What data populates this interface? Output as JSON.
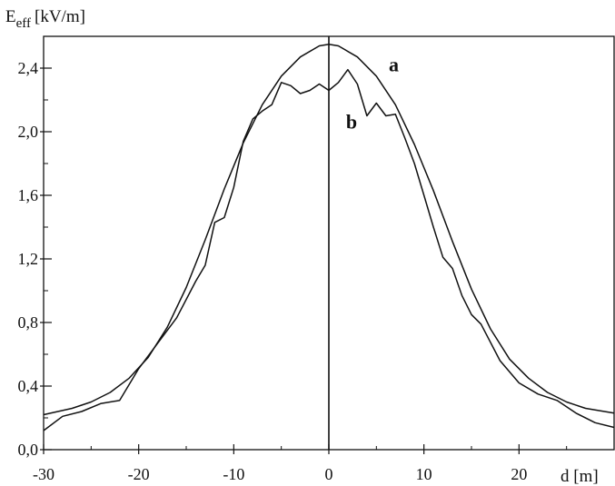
{
  "chart_data": {
    "type": "line",
    "title": "",
    "xlabel": "d [m]",
    "ylabel": {
      "main": "E",
      "subscript": "eff",
      "unit": "[kV/m]"
    },
    "xlim": [
      -30,
      30
    ],
    "ylim": [
      0,
      2.6
    ],
    "x_ticks": [
      -30,
      -20,
      -10,
      0,
      10,
      20
    ],
    "x_tick_labels": [
      "-30",
      "-20",
      "-10",
      "0",
      "10",
      "20"
    ],
    "y_ticks": [
      0,
      0.4,
      0.8,
      1.2,
      1.6,
      2.0,
      2.4
    ],
    "y_tick_labels": [
      "0,0",
      "0,4",
      "0,8",
      "1,2",
      "1,6",
      "2,0",
      "2,4"
    ],
    "grid": false,
    "legend": "none",
    "series": [
      {
        "name": "a",
        "x": [
          -30,
          -27,
          -25,
          -23,
          -21,
          -19,
          -17,
          -15,
          -13,
          -11,
          -9,
          -7,
          -5,
          -3,
          -1,
          0,
          1,
          3,
          5,
          7,
          9,
          11,
          13,
          15,
          17,
          19,
          21,
          23,
          25,
          27,
          30
        ],
        "values": [
          0.22,
          0.26,
          0.3,
          0.36,
          0.45,
          0.58,
          0.77,
          1.02,
          1.32,
          1.64,
          1.93,
          2.17,
          2.35,
          2.47,
          2.54,
          2.55,
          2.54,
          2.47,
          2.35,
          2.17,
          1.92,
          1.63,
          1.31,
          1.01,
          0.76,
          0.57,
          0.45,
          0.36,
          0.3,
          0.26,
          0.23
        ]
      },
      {
        "name": "b",
        "x": [
          -30,
          -28,
          -26,
          -24,
          -22,
          -20,
          -18,
          -16,
          -14,
          -13,
          -12,
          -11,
          -10,
          -9,
          -8,
          -7,
          -6,
          -5,
          -4,
          -3,
          -2,
          -1,
          0,
          1,
          2,
          3,
          4,
          5,
          6,
          7,
          8,
          9,
          10,
          11,
          12,
          13,
          14,
          15,
          16,
          18,
          20,
          22,
          24,
          26,
          28,
          30
        ],
        "values": [
          0.12,
          0.21,
          0.24,
          0.29,
          0.31,
          0.51,
          0.67,
          0.83,
          1.06,
          1.16,
          1.43,
          1.46,
          1.65,
          1.94,
          2.08,
          2.13,
          2.17,
          2.31,
          2.29,
          2.24,
          2.26,
          2.3,
          2.26,
          2.31,
          2.39,
          2.3,
          2.1,
          2.18,
          2.1,
          2.11,
          1.96,
          1.8,
          1.6,
          1.4,
          1.21,
          1.14,
          0.97,
          0.85,
          0.79,
          0.56,
          0.42,
          0.35,
          0.31,
          0.23,
          0.17,
          0.14
        ]
      }
    ]
  }
}
